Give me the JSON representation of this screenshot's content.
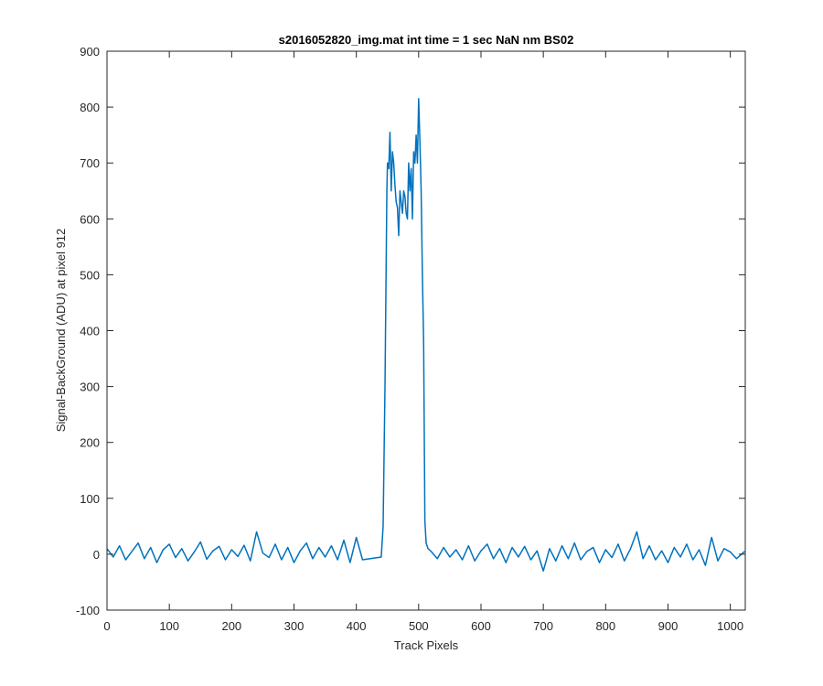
{
  "chart_data": {
    "type": "line",
    "title": "s2016052820_img.mat int time = 1 sec  NaN nm BS02",
    "xlabel": "Track Pixels",
    "ylabel": "Signal-BackGround (ADU) at pixel 912",
    "xlim": [
      0,
      1024
    ],
    "ylim": [
      -100,
      900
    ],
    "xticks": [
      0,
      100,
      200,
      300,
      400,
      500,
      600,
      700,
      800,
      900,
      1000
    ],
    "yticks": [
      -100,
      0,
      100,
      200,
      300,
      400,
      500,
      600,
      700,
      800,
      900
    ],
    "grid": false,
    "line_color": "#0072bd",
    "series": [
      {
        "values_description_omitted": true,
        "x": [
          0,
          10,
          20,
          30,
          40,
          50,
          60,
          70,
          80,
          90,
          100,
          110,
          120,
          130,
          140,
          150,
          160,
          170,
          180,
          190,
          200,
          210,
          220,
          230,
          240,
          250,
          260,
          270,
          280,
          290,
          300,
          310,
          320,
          330,
          340,
          350,
          360,
          370,
          380,
          390,
          400,
          410,
          440,
          443,
          446,
          449,
          450,
          452,
          454,
          456,
          458,
          460,
          462,
          464,
          466,
          468,
          470,
          472,
          474,
          476,
          478,
          480,
          482,
          484,
          486,
          488,
          490,
          492,
          494,
          496,
          498,
          500,
          502,
          504,
          506,
          508,
          510,
          512,
          515,
          520,
          530,
          540,
          550,
          560,
          570,
          580,
          590,
          600,
          610,
          620,
          630,
          640,
          650,
          660,
          670,
          680,
          690,
          700,
          710,
          720,
          730,
          740,
          750,
          760,
          770,
          780,
          790,
          800,
          810,
          820,
          830,
          840,
          850,
          860,
          870,
          880,
          890,
          900,
          910,
          920,
          930,
          940,
          950,
          960,
          970,
          980,
          990,
          1000,
          1010,
          1023
        ],
        "y": [
          10,
          -5,
          15,
          -10,
          5,
          20,
          -8,
          12,
          -15,
          8,
          18,
          -6,
          10,
          -12,
          4,
          22,
          -9,
          6,
          14,
          -10,
          8,
          -4,
          16,
          -12,
          40,
          2,
          -6,
          18,
          -10,
          12,
          -15,
          6,
          20,
          -8,
          12,
          -5,
          15,
          -10,
          25,
          -15,
          30,
          -10,
          -5,
          50,
          300,
          650,
          700,
          690,
          755,
          650,
          720,
          700,
          660,
          630,
          620,
          570,
          650,
          630,
          610,
          650,
          640,
          610,
          600,
          700,
          650,
          690,
          600,
          720,
          700,
          750,
          700,
          815,
          740,
          650,
          500,
          380,
          60,
          20,
          10,
          5,
          -8,
          12,
          -5,
          8,
          -10,
          15,
          -12,
          6,
          18,
          -8,
          10,
          -15,
          12,
          -5,
          14,
          -10,
          6,
          -30,
          10,
          -12,
          15,
          -8,
          20,
          -10,
          5,
          12,
          -15,
          8,
          -6,
          18,
          -12,
          10,
          40,
          -8,
          15,
          -10,
          6,
          -15,
          12,
          -5,
          18,
          -10,
          8,
          -20,
          30,
          -12,
          10,
          4,
          -8,
          5
        ]
      }
    ]
  }
}
